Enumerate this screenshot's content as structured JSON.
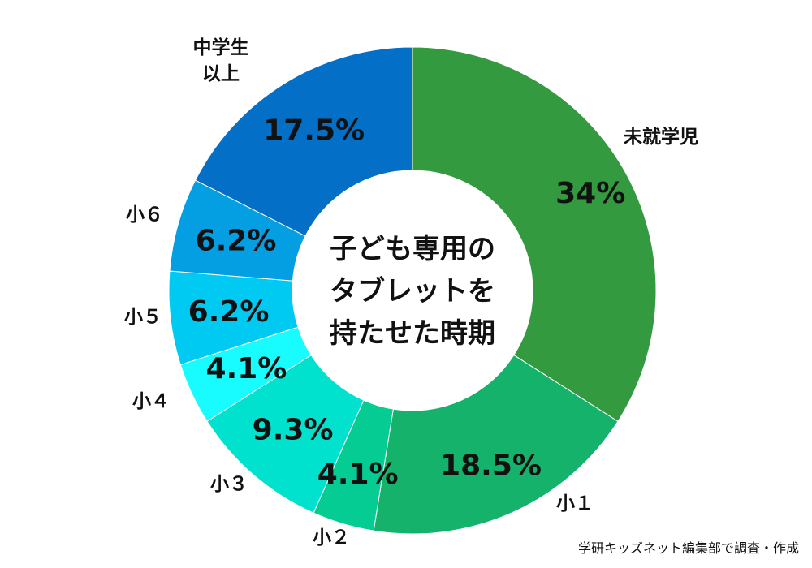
{
  "chart_data": {
    "type": "pie",
    "title": "子ども専用のタブレットを持たせた時期",
    "slices": [
      {
        "name": "未就学児",
        "value": 34,
        "label": "34%",
        "color": "#339a3f"
      },
      {
        "name": "小１",
        "value": 18.5,
        "label": "18.5%",
        "color": "#14b26b"
      },
      {
        "name": "小２",
        "value": 4.1,
        "label": "4.1%",
        "color": "#05cc93"
      },
      {
        "name": "小３",
        "value": 9.3,
        "label": "9.3%",
        "color": "#00e2cd"
      },
      {
        "name": "小４",
        "value": 4.1,
        "label": "4.1%",
        "color": "#18fbff"
      },
      {
        "name": "小５",
        "value": 6.2,
        "label": "6.2%",
        "color": "#00caf1"
      },
      {
        "name": "小６",
        "value": 6.2,
        "label": "6.2%",
        "color": "#049ee2"
      },
      {
        "name": "中学生以上",
        "value": 17.5,
        "label": "17.5%",
        "color": "#036fc6"
      }
    ]
  },
  "center_title_lines": [
    "子ども専用の",
    "タブレットを",
    "持たせた時期"
  ],
  "category_label_lines": [
    [
      "未就学児"
    ],
    [
      "小１"
    ],
    [
      "小２"
    ],
    [
      "小３"
    ],
    [
      "小４"
    ],
    [
      "小５"
    ],
    [
      "小６"
    ],
    [
      "中学生",
      "以上"
    ]
  ],
  "credit": "学研キッズネット編集部で調査・作成"
}
